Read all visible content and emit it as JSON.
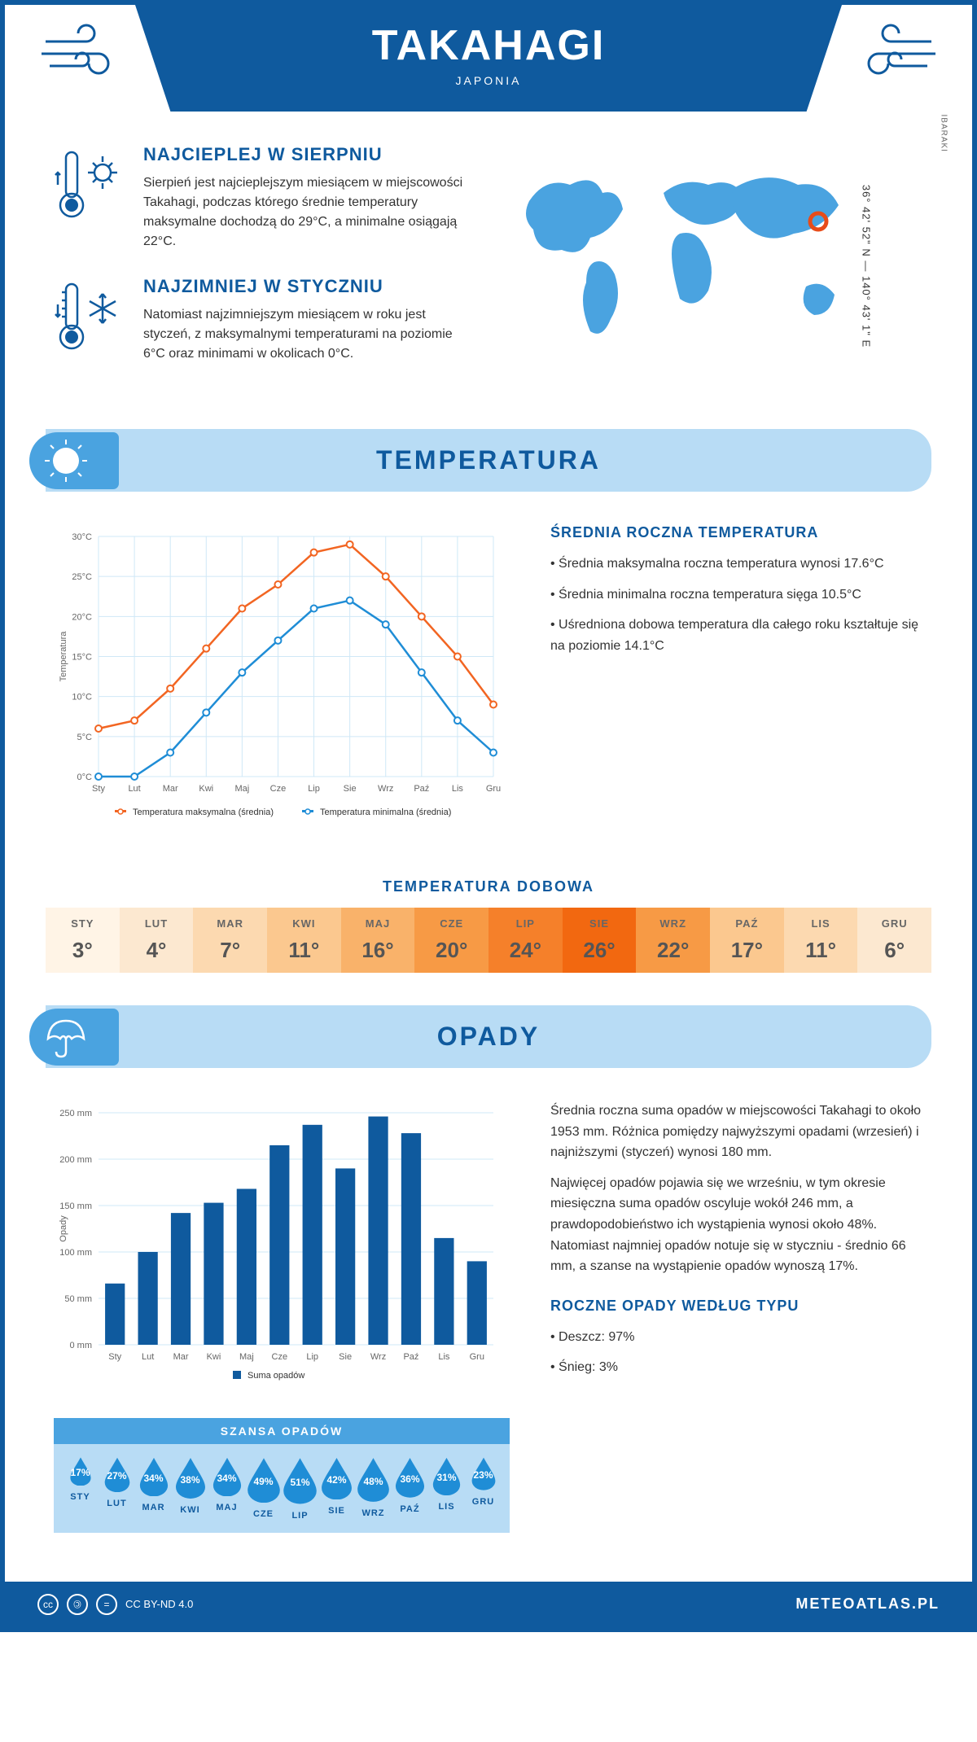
{
  "header": {
    "city": "TAKAHAGI",
    "country": "JAPONIA"
  },
  "location": {
    "coords": "36° 42' 52\" N — 140° 43' 1\" E",
    "region": "IBARAKI",
    "marker_color": "#e84c1a"
  },
  "intro": {
    "hot": {
      "title": "NAJCIEPLEJ W SIERPNIU",
      "text": "Sierpień jest najcieplejszym miesiącem w miejscowości Takahagi, podczas którego średnie temperatury maksymalne dochodzą do 29°C, a minimalne osiągają 22°C."
    },
    "cold": {
      "title": "NAJZIMNIEJ W STYCZNIU",
      "text": "Natomiast najzimniejszym miesiącem w roku jest styczeń, z maksymalnymi temperaturami na poziomie 6°C oraz minimami w okolicach 0°C."
    }
  },
  "colors": {
    "primary": "#0f5a9e",
    "light_blue": "#b8dcf5",
    "mid_blue": "#4aa3e0",
    "orange": "#f26522",
    "line_blue": "#1f8dd6"
  },
  "temperature": {
    "section_title": "TEMPERATURA",
    "info_title": "ŚREDNIA ROCZNA TEMPERATURA",
    "bullets": [
      "• Średnia maksymalna roczna temperatura wynosi 17.6°C",
      "• Średnia minimalna roczna temperatura sięga 10.5°C",
      "• Uśredniona dobowa temperatura dla całego roku kształtuje się na poziomie 14.1°C"
    ],
    "chart": {
      "months": [
        "Sty",
        "Lut",
        "Mar",
        "Kwi",
        "Maj",
        "Cze",
        "Lip",
        "Sie",
        "Wrz",
        "Paź",
        "Lis",
        "Gru"
      ],
      "max": [
        6,
        7,
        11,
        16,
        21,
        24,
        28,
        29,
        25,
        20,
        15,
        9
      ],
      "min": [
        0,
        0,
        3,
        8,
        13,
        17,
        21,
        22,
        19,
        13,
        7,
        3
      ],
      "y_ticks": [
        0,
        5,
        10,
        15,
        20,
        25,
        30
      ],
      "y_label": "Temperatura",
      "legend_max": "Temperatura maksymalna (średnia)",
      "legend_min": "Temperatura minimalna (średnia)",
      "max_color": "#f26522",
      "min_color": "#1f8dd6",
      "grid_color": "#cfe8f7"
    },
    "daily_title": "TEMPERATURA DOBOWA",
    "daily": {
      "months": [
        "STY",
        "LUT",
        "MAR",
        "KWI",
        "MAJ",
        "CZE",
        "LIP",
        "SIE",
        "WRZ",
        "PAŹ",
        "LIS",
        "GRU"
      ],
      "values": [
        "3°",
        "4°",
        "7°",
        "11°",
        "16°",
        "20°",
        "24°",
        "26°",
        "22°",
        "17°",
        "11°",
        "6°"
      ],
      "colors": [
        "#fff4e6",
        "#fce8d0",
        "#fcd9b0",
        "#fbc88f",
        "#f9b26a",
        "#f79a45",
        "#f5802a",
        "#f26810",
        "#f79a45",
        "#fbc88f",
        "#fcd9b0",
        "#fce8d0"
      ]
    }
  },
  "precipitation": {
    "section_title": "OPADY",
    "text1": "Średnia roczna suma opadów w miejscowości Takahagi to około 1953 mm. Różnica pomiędzy najwyższymi opadami (wrzesień) i najniższymi (styczeń) wynosi 180 mm.",
    "text2": "Najwięcej opadów pojawia się we wrześniu, w tym okresie miesięczna suma opadów oscyluje wokół 246 mm, a prawdopodobieństwo ich wystąpienia wynosi około 48%. Natomiast najmniej opadów notuje się w styczniu - średnio 66 mm, a szanse na wystąpienie opadów wynoszą 17%.",
    "chart": {
      "months": [
        "Sty",
        "Lut",
        "Mar",
        "Kwi",
        "Maj",
        "Cze",
        "Lip",
        "Sie",
        "Wrz",
        "Paź",
        "Lis",
        "Gru"
      ],
      "values": [
        66,
        100,
        142,
        153,
        168,
        215,
        237,
        190,
        246,
        228,
        115,
        90
      ],
      "y_ticks": [
        0,
        50,
        100,
        150,
        200,
        250
      ],
      "y_label": "Opady",
      "legend": "Suma opadów",
      "bar_color": "#0f5a9e",
      "grid_color": "#cfe8f7"
    },
    "chance_title": "SZANSA OPADÓW",
    "chance": {
      "months": [
        "STY",
        "LUT",
        "MAR",
        "KWI",
        "MAJ",
        "CZE",
        "LIP",
        "SIE",
        "WRZ",
        "PAŹ",
        "LIS",
        "GRU"
      ],
      "percents": [
        "17%",
        "27%",
        "34%",
        "38%",
        "34%",
        "49%",
        "51%",
        "42%",
        "48%",
        "36%",
        "31%",
        "23%"
      ],
      "sizes": [
        28,
        34,
        38,
        40,
        38,
        44,
        45,
        41,
        43,
        39,
        37,
        32
      ]
    },
    "type_title": "ROCZNE OPADY WEDŁUG TYPU",
    "type_bullets": [
      "• Deszcz: 97%",
      "• Śnieg: 3%"
    ]
  },
  "footer": {
    "license": "CC BY-ND 4.0",
    "site": "METEOATLAS.PL"
  }
}
